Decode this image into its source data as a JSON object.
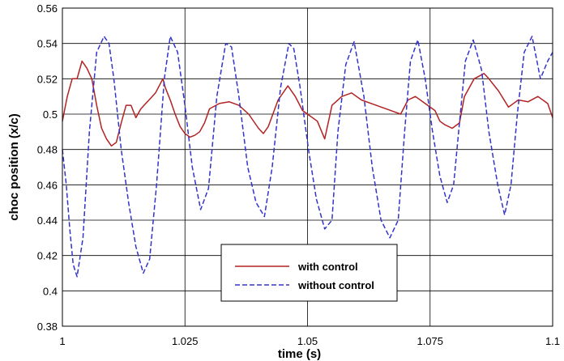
{
  "chart_data": {
    "type": "line",
    "xlabel": "time (s)",
    "ylabel": "choc position (x/c)",
    "xlim": [
      1.0,
      1.1
    ],
    "ylim": [
      0.38,
      0.56
    ],
    "xticks": [
      1.0,
      1.025,
      1.05,
      1.075,
      1.1
    ],
    "xtick_labels": [
      "1",
      "1.025",
      "1.05",
      "1.075",
      "1.1"
    ],
    "yticks": [
      0.38,
      0.4,
      0.42,
      0.44,
      0.46,
      0.48,
      0.5,
      0.52,
      0.54,
      0.56
    ],
    "ytick_labels": [
      "0.38",
      "0.4",
      "0.42",
      "0.44",
      "0.46",
      "0.48",
      "0.5",
      "0.52",
      "0.54",
      "0.56"
    ],
    "grid": true,
    "legend_position": "bottom-center",
    "series": [
      {
        "name": "with control",
        "color": "#b22222",
        "style": "solid",
        "x": [
          1.0,
          1.001,
          1.002,
          1.003,
          1.004,
          1.005,
          1.006,
          1.007,
          1.008,
          1.009,
          1.01,
          1.011,
          1.012,
          1.013,
          1.014,
          1.015,
          1.016,
          1.017,
          1.018,
          1.019,
          1.0205,
          1.021,
          1.022,
          1.023,
          1.024,
          1.025,
          1.026,
          1.027,
          1.028,
          1.029,
          1.03,
          1.032,
          1.034,
          1.036,
          1.038,
          1.04,
          1.041,
          1.042,
          1.044,
          1.046,
          1.0475,
          1.049,
          1.05,
          1.052,
          1.0535,
          1.055,
          1.057,
          1.059,
          1.061,
          1.064,
          1.067,
          1.069,
          1.0705,
          1.072,
          1.074,
          1.076,
          1.077,
          1.078,
          1.0795,
          1.081,
          1.082,
          1.084,
          1.086,
          1.087,
          1.089,
          1.091,
          1.093,
          1.095,
          1.097,
          1.099,
          1.1
        ],
        "y": [
          0.496,
          0.51,
          0.52,
          0.52,
          0.53,
          0.526,
          0.52,
          0.505,
          0.492,
          0.486,
          0.482,
          0.484,
          0.495,
          0.505,
          0.505,
          0.498,
          0.503,
          0.506,
          0.509,
          0.512,
          0.52,
          0.515,
          0.508,
          0.5,
          0.493,
          0.489,
          0.487,
          0.488,
          0.49,
          0.495,
          0.503,
          0.506,
          0.507,
          0.505,
          0.5,
          0.492,
          0.489,
          0.493,
          0.508,
          0.516,
          0.51,
          0.502,
          0.5,
          0.496,
          0.486,
          0.505,
          0.51,
          0.512,
          0.508,
          0.505,
          0.502,
          0.5,
          0.508,
          0.51,
          0.506,
          0.502,
          0.496,
          0.494,
          0.492,
          0.495,
          0.51,
          0.52,
          0.523,
          0.52,
          0.513,
          0.504,
          0.508,
          0.507,
          0.51,
          0.506,
          0.498
        ]
      },
      {
        "name": "without control",
        "color": "#3333cc",
        "style": "dashed",
        "x": [
          1.0,
          1.0008,
          1.0015,
          1.0022,
          1.003,
          1.0042,
          1.0055,
          1.007,
          1.0085,
          1.0095,
          1.0105,
          1.012,
          1.0135,
          1.015,
          1.0165,
          1.0178,
          1.0192,
          1.0208,
          1.022,
          1.0235,
          1.025,
          1.0265,
          1.0282,
          1.0298,
          1.0315,
          1.0333,
          1.0345,
          1.036,
          1.0378,
          1.0395,
          1.0412,
          1.0428,
          1.0445,
          1.0462,
          1.0472,
          1.0485,
          1.0502,
          1.0518,
          1.0535,
          1.055,
          1.0562,
          1.0578,
          1.0595,
          1.0615,
          1.0632,
          1.065,
          1.0668,
          1.0685,
          1.0698,
          1.071,
          1.0725,
          1.074,
          1.0755,
          1.077,
          1.0785,
          1.0798,
          1.081,
          1.0822,
          1.0838,
          1.0855,
          1.087,
          1.0888,
          1.0902,
          1.0915,
          1.0928,
          1.0942,
          1.0958,
          1.0975,
          1.099,
          1.1
        ],
        "y": [
          0.48,
          0.46,
          0.435,
          0.415,
          0.408,
          0.43,
          0.49,
          0.535,
          0.544,
          0.54,
          0.52,
          0.48,
          0.45,
          0.425,
          0.41,
          0.418,
          0.46,
          0.52,
          0.544,
          0.535,
          0.505,
          0.47,
          0.446,
          0.458,
          0.51,
          0.54,
          0.538,
          0.51,
          0.47,
          0.45,
          0.442,
          0.47,
          0.515,
          0.54,
          0.537,
          0.515,
          0.48,
          0.452,
          0.435,
          0.44,
          0.49,
          0.528,
          0.541,
          0.51,
          0.47,
          0.44,
          0.43,
          0.44,
          0.49,
          0.53,
          0.542,
          0.52,
          0.49,
          0.465,
          0.45,
          0.46,
          0.495,
          0.53,
          0.542,
          0.525,
          0.49,
          0.46,
          0.443,
          0.46,
          0.5,
          0.535,
          0.544,
          0.52,
          0.53,
          0.535
        ]
      }
    ]
  }
}
